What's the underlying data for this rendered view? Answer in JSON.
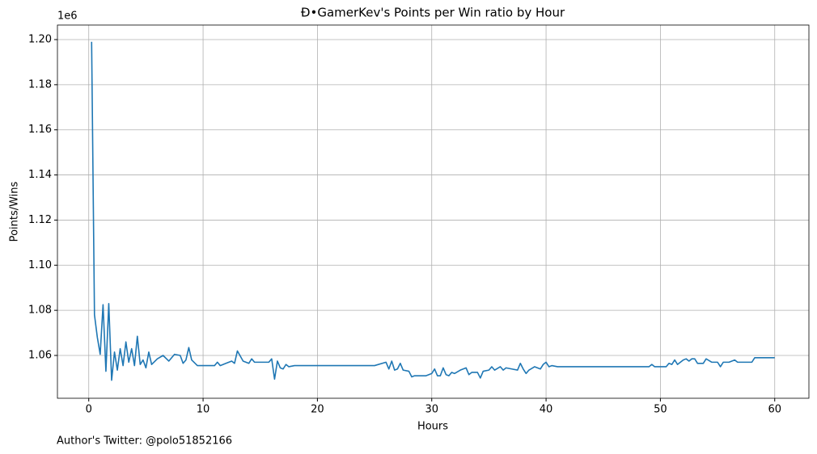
{
  "chart_data": {
    "type": "line",
    "title": "Đ•GamerKev's Points per Win ratio by Hour",
    "x_label": "Hours",
    "y_label": "Points/Wins",
    "y_offset_label": "1e6",
    "footer": "Author's Twitter: @polo51852166",
    "grid": true,
    "x": [
      0.25,
      0.5,
      0.75,
      1.0,
      1.25,
      1.5,
      1.75,
      2.0,
      2.25,
      2.5,
      2.75,
      3.0,
      3.25,
      3.5,
      3.75,
      4.0,
      4.25,
      4.5,
      4.75,
      5.0,
      5.25,
      5.5,
      6.0,
      6.5,
      7.0,
      7.5,
      8.0,
      8.25,
      8.5,
      8.75,
      9.0,
      9.5,
      11.0,
      11.25,
      11.5,
      12.0,
      12.5,
      12.75,
      13.0,
      13.5,
      14.0,
      14.25,
      14.5,
      15.0,
      15.75,
      16.0,
      16.25,
      16.5,
      16.75,
      17.0,
      17.25,
      17.5,
      18.0,
      25.0,
      26.0,
      26.25,
      26.5,
      26.75,
      27.0,
      27.25,
      27.5,
      28.0,
      28.25,
      28.5,
      29.5,
      30.0,
      30.25,
      30.5,
      30.75,
      31.0,
      31.25,
      31.5,
      31.75,
      32.0,
      32.5,
      33.0,
      33.25,
      33.5,
      34.0,
      34.25,
      34.5,
      35.0,
      35.25,
      35.5,
      36.0,
      36.25,
      36.5,
      37.0,
      37.5,
      37.75,
      38.0,
      38.25,
      38.5,
      39.0,
      39.5,
      39.75,
      40.0,
      40.25,
      40.5,
      41.0,
      49.0,
      49.25,
      49.5,
      50.5,
      50.75,
      51.0,
      51.25,
      51.5,
      52.0,
      52.25,
      52.5,
      52.75,
      53.0,
      53.25,
      53.75,
      54.0,
      54.5,
      55.0,
      55.25,
      55.5,
      56.0,
      56.5,
      56.75,
      58.0,
      58.25,
      60.0
    ],
    "series": [
      {
        "name": "Points/Wins",
        "color": "#1f77b4",
        "values": [
          1199000,
          1078000,
          1068000,
          1060500,
          1082500,
          1053000,
          1083000,
          1049000,
          1061500,
          1053500,
          1063000,
          1055500,
          1066000,
          1057000,
          1063000,
          1055500,
          1068500,
          1056000,
          1058000,
          1054500,
          1061500,
          1056000,
          1058500,
          1060000,
          1057500,
          1060500,
          1060000,
          1056500,
          1058000,
          1063500,
          1058000,
          1055500,
          1055500,
          1057000,
          1055500,
          1056500,
          1057500,
          1056500,
          1062000,
          1057500,
          1056500,
          1058500,
          1057000,
          1057000,
          1057000,
          1058500,
          1049500,
          1057500,
          1054500,
          1054000,
          1056000,
          1055000,
          1055500,
          1055500,
          1057000,
          1054000,
          1057500,
          1053500,
          1054000,
          1056500,
          1053500,
          1053000,
          1050500,
          1051000,
          1051000,
          1052000,
          1054000,
          1051000,
          1051000,
          1054500,
          1051500,
          1051000,
          1052500,
          1052000,
          1053500,
          1054500,
          1051500,
          1052500,
          1052500,
          1050000,
          1053000,
          1053500,
          1055000,
          1053500,
          1055000,
          1053500,
          1054500,
          1054000,
          1053500,
          1056500,
          1054000,
          1052000,
          1053500,
          1055000,
          1054000,
          1056000,
          1057000,
          1055000,
          1055500,
          1055000,
          1055000,
          1056000,
          1055000,
          1055000,
          1056500,
          1056000,
          1058000,
          1056000,
          1058000,
          1058500,
          1057500,
          1058500,
          1058500,
          1056500,
          1056500,
          1058500,
          1057000,
          1057000,
          1055000,
          1057000,
          1057000,
          1058000,
          1057000,
          1057000,
          1059000,
          1059000
        ]
      }
    ],
    "xlim": [
      -2.74,
      62.99
    ],
    "xticks": [
      0,
      10,
      20,
      30,
      40,
      50,
      60
    ],
    "ylim": [
      1041023,
      1206445
    ],
    "yticks": [
      {
        "value": 1060000,
        "label": "1.06"
      },
      {
        "value": 1080000,
        "label": "1.08"
      },
      {
        "value": 1100000,
        "label": "1.10"
      },
      {
        "value": 1120000,
        "label": "1.12"
      },
      {
        "value": 1140000,
        "label": "1.14"
      },
      {
        "value": 1160000,
        "label": "1.16"
      },
      {
        "value": 1180000,
        "label": "1.18"
      },
      {
        "value": 1200000,
        "label": "1.20"
      }
    ]
  }
}
